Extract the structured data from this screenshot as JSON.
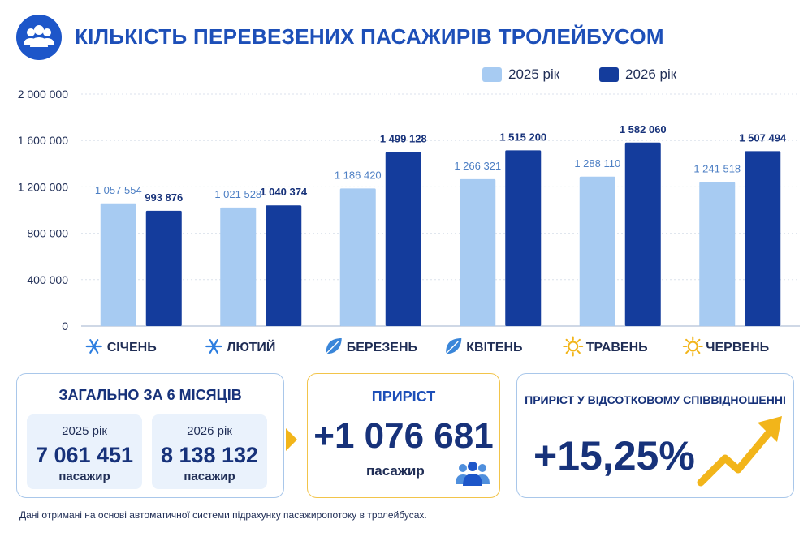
{
  "header": {
    "title": "КІЛЬКІСТЬ ПЕРЕВЕЗЕНИХ ПАСАЖИРІВ ТРОЛЕЙБУСОМ",
    "icon": "people-group-icon"
  },
  "colors": {
    "series_2025": "#a7cbf2",
    "series_2026": "#143c9c",
    "accent": "#f2b51a",
    "text": "#17327a"
  },
  "chart_data": {
    "type": "bar",
    "title": "КІЛЬКІСТЬ ПЕРЕВЕЗЕНИХ ПАСАЖИРІВ ТРОЛЕЙБУСОМ",
    "categories": [
      "СІЧЕНЬ",
      "ЛЮТИЙ",
      "БЕРЕЗЕНЬ",
      "КВІТЕНЬ",
      "ТРАВЕНЬ",
      "ЧЕРВЕНЬ"
    ],
    "category_icons": [
      "snowflake-icon",
      "snowflake-icon",
      "leaf-icon",
      "leaf-icon",
      "sun-icon",
      "sun-icon"
    ],
    "series": [
      {
        "name": "2025 рік",
        "values": [
          1057554,
          1021528,
          1186420,
          1266321,
          1288110,
          1241518
        ],
        "labels": [
          "1 057 554",
          "1 021 528",
          "1 186 420",
          "1 266 321",
          "1 288 110",
          "1 241 518"
        ],
        "color": "#a7cbf2"
      },
      {
        "name": "2026 рік",
        "values": [
          993876,
          1040374,
          1499128,
          1515200,
          1582060,
          1507494
        ],
        "labels": [
          "993 876",
          "1 040 374",
          "1 499 128",
          "1 515 200",
          "1 582 060",
          "1 507 494"
        ],
        "color": "#143c9c"
      }
    ],
    "yticks": [
      0,
      400000,
      800000,
      1200000,
      1600000,
      2000000
    ],
    "ytick_labels": [
      "0",
      "400 000",
      "800 000",
      "1 200 000",
      "1 600 000",
      "2 000 000"
    ],
    "ylim": [
      0,
      2000000
    ],
    "xlabel": "",
    "ylabel": "",
    "grid": true,
    "legend": "top-right"
  },
  "summary": {
    "title": "ЗАГАЛЬНО ЗА 6 МІСЯЦІВ",
    "items": [
      {
        "year": "2025 рік",
        "value": "7 061 451",
        "unit": "пасажир"
      },
      {
        "year": "2026 рік",
        "value": "8 138 132",
        "unit": "пасажир"
      }
    ]
  },
  "growth": {
    "title": "ПРИРІСТ",
    "value": "+1 076 681",
    "unit": "пасажир",
    "icon": "people-group-icon"
  },
  "growth_pct": {
    "title": "ПРИРІСТ У ВІДСОТКОВОМУ СПІВВІДНОШЕННІ",
    "value": "+15,25%",
    "icon": "trend-up-arrow-icon"
  },
  "footnote": "Дані отримані на основі автоматичної системи підрахунку пасажиропотоку в тролейбусах."
}
